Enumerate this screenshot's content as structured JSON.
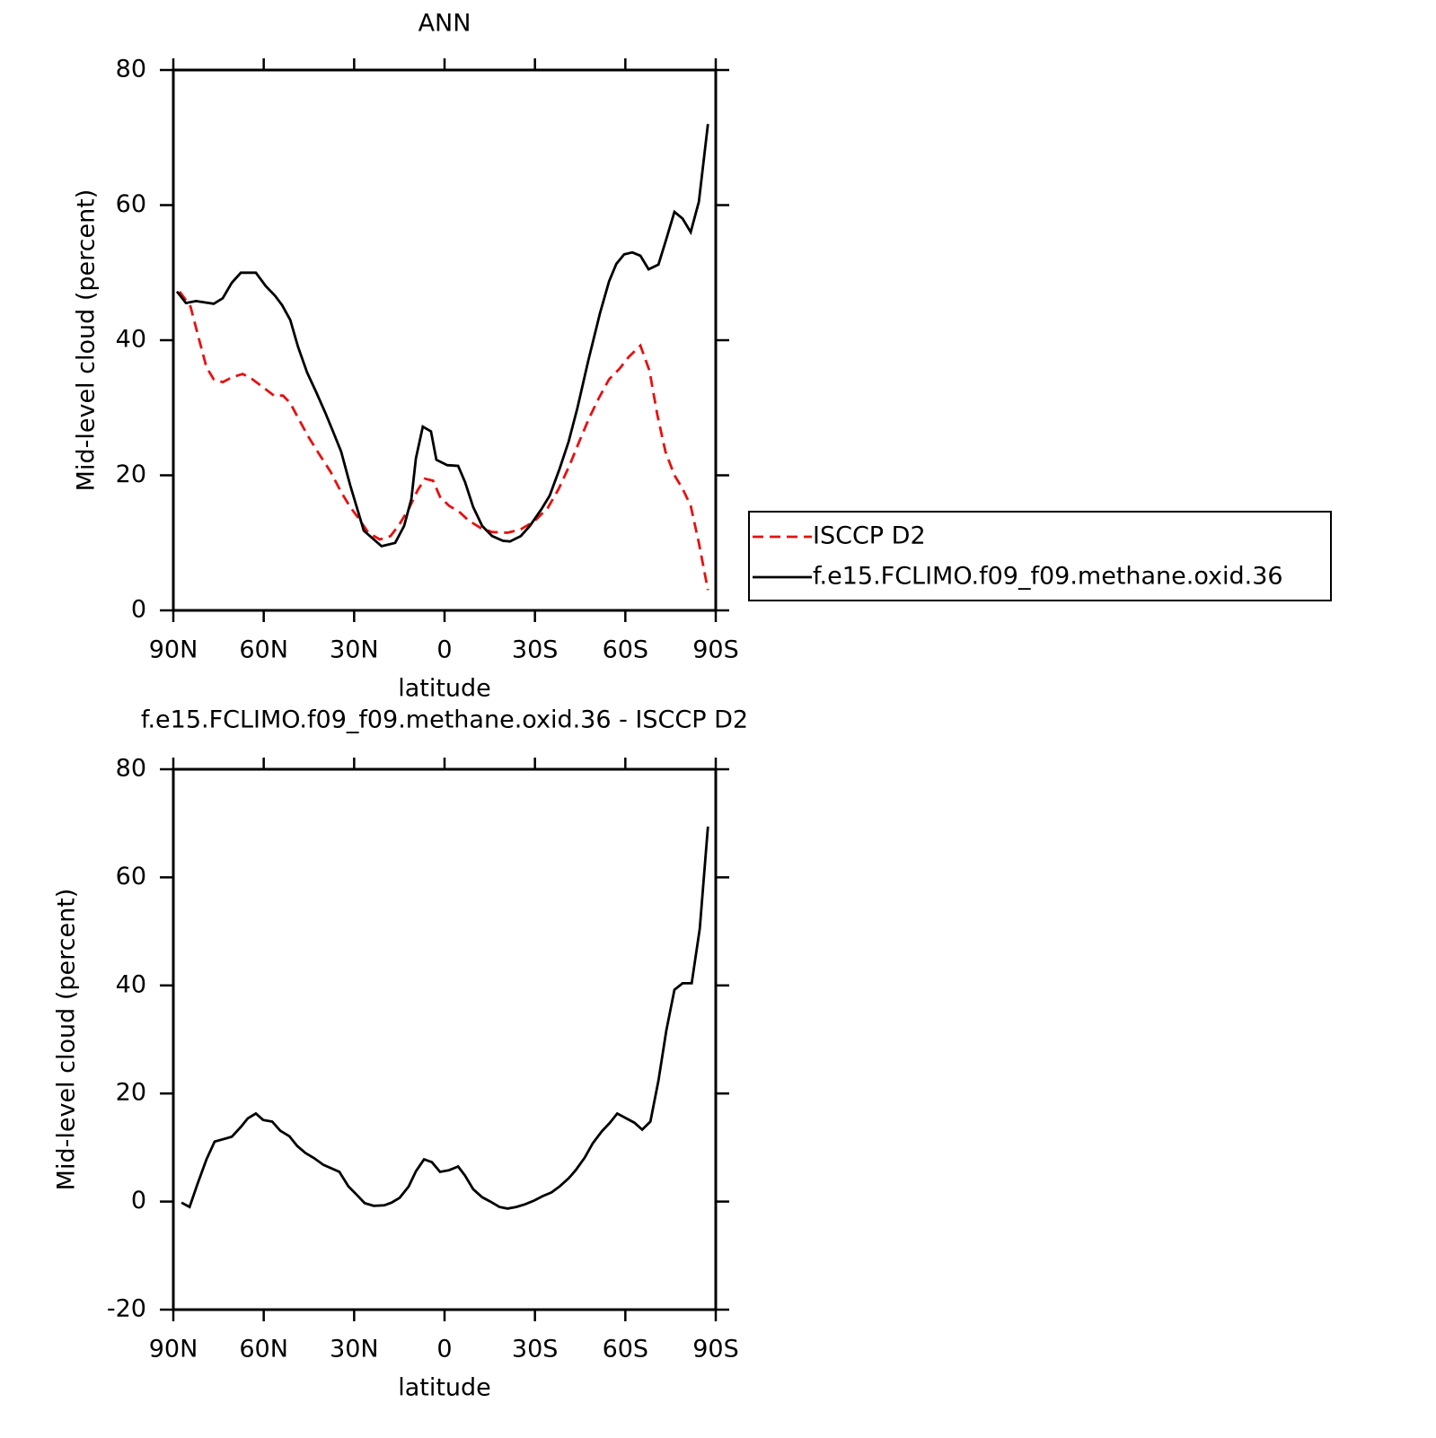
{
  "chart_data": [
    {
      "type": "line",
      "title": "ANN",
      "xlabel": "latitude",
      "ylabel": "Mid-level cloud (percent)",
      "xlim": [
        90,
        -90
      ],
      "xticks": [
        {
          "value": 90,
          "label": "90N"
        },
        {
          "value": 60,
          "label": "60N"
        },
        {
          "value": 30,
          "label": "30N"
        },
        0,
        {
          "value": -30,
          "label": "30S"
        },
        {
          "value": -60,
          "label": "60S"
        },
        {
          "value": -90,
          "label": "90S"
        }
      ],
      "ylim": [
        0,
        80
      ],
      "yticks": [
        0,
        20,
        40,
        60,
        80
      ],
      "legend": "right",
      "series": [
        {
          "name": "ISCCP D2",
          "color": "#e8100f",
          "dash": "dashed",
          "x": [
            87.9,
            84.3,
            81.4,
            79,
            76.6,
            73.6,
            70.6,
            67,
            64,
            61,
            56.6,
            53.6,
            51.2,
            48.6,
            45.3,
            41.7,
            37.8,
            34.3,
            31.3,
            28.3,
            25.3,
            21.5,
            17.9,
            14.9,
            11.9,
            8.9,
            6.5,
            3.8,
            1.5,
            -1.5,
            -5.1,
            -8,
            -12,
            -15.8,
            -20.9,
            -25.3,
            -29.8,
            -34.3,
            -37.9,
            -41.5,
            -44.7,
            -48,
            -51.3,
            -54.6,
            -58.1,
            -61.1,
            -65,
            -68,
            -70.6,
            -73.3,
            -76.3,
            -79,
            -81.7,
            -84.4,
            -87.4
          ],
          "values": [
            47.2,
            45,
            40,
            36,
            34.2,
            33.8,
            34.5,
            35,
            34.3,
            33.3,
            31.8,
            31.8,
            30.7,
            28.5,
            25.8,
            23.2,
            20.5,
            17.5,
            15.3,
            13.5,
            11.5,
            10.5,
            11,
            12.8,
            15,
            17.8,
            19.5,
            19.2,
            16.8,
            15.5,
            14.5,
            13.3,
            12.2,
            11.6,
            11.5,
            12,
            13.2,
            15.2,
            18,
            21.5,
            25,
            28.5,
            31.5,
            34.2,
            35.8,
            37.5,
            39.2,
            35.5,
            29,
            23.5,
            20,
            18,
            15.5,
            10,
            3
          ]
        },
        {
          "name": "f.e15.FCLIMO.f09_f09.methane.oxid.36",
          "color": "#000000",
          "dash": "solid",
          "x": [
            88.8,
            85.8,
            82.5,
            76.6,
            73.6,
            70.6,
            67.6,
            62.6,
            59.3,
            56.3,
            53.9,
            51.2,
            48.6,
            45.6,
            42.6,
            39.6,
            37,
            34.3,
            31.3,
            26.8,
            20.9,
            16.4,
            13.4,
            11,
            9.5,
            7.2,
            4.5,
            2.7,
            -0.9,
            -4.5,
            -6.8,
            -9.5,
            -12.5,
            -15.8,
            -19.4,
            -21.7,
            -25.3,
            -28.3,
            -32.2,
            -34.9,
            -38.2,
            -41.2,
            -44.1,
            -47.7,
            -51.6,
            -54.6,
            -57,
            -59.6,
            -62.3,
            -65,
            -67.7,
            -71,
            -73.6,
            -76.3,
            -79,
            -81.7,
            -84.4,
            -87.4
          ],
          "values": [
            47.2,
            45.5,
            45.8,
            45.4,
            46.2,
            48.5,
            50,
            50,
            48,
            46.6,
            45.2,
            43,
            39,
            35.2,
            32.3,
            29.3,
            26.5,
            23.5,
            18.5,
            11.8,
            9.5,
            10,
            12.5,
            16.5,
            22.5,
            27.2,
            26.5,
            22.3,
            21.5,
            21.4,
            19,
            15.3,
            12.5,
            11,
            10.3,
            10.2,
            11,
            12.5,
            15,
            17,
            21,
            25,
            30,
            37,
            44,
            48.7,
            51.3,
            52.7,
            53,
            52.5,
            50.5,
            51.2,
            55,
            59,
            58,
            56,
            60.5,
            72
          ]
        }
      ]
    },
    {
      "type": "line",
      "title": "f.e15.FCLIMO.f09_f09.methane.oxid.36 - ISCCP D2",
      "xlabel": "latitude",
      "ylabel": "Mid-level cloud (percent)",
      "xlim": [
        90,
        -90
      ],
      "xticks": [
        {
          "value": 90,
          "label": "90N"
        },
        {
          "value": 60,
          "label": "60N"
        },
        {
          "value": 30,
          "label": "30N"
        },
        0,
        {
          "value": -30,
          "label": "30S"
        },
        {
          "value": -60,
          "label": "60S"
        },
        {
          "value": -90,
          "label": "90S"
        }
      ],
      "ylim": [
        -20,
        80
      ],
      "yticks": [
        -20,
        0,
        20,
        40,
        60,
        80
      ],
      "series": [
        {
          "color": "#000000",
          "dash": "solid",
          "x": [
            87.3,
            84.6,
            82,
            79,
            76.3,
            70.6,
            67.6,
            65.3,
            62.6,
            60.2,
            57.2,
            54.5,
            51.5,
            48.9,
            46.2,
            43.2,
            40.2,
            34.9,
            31.9,
            29.2,
            26.5,
            23.5,
            20,
            17.6,
            14.9,
            11.9,
            9.5,
            6.8,
            4.2,
            1.5,
            -1.5,
            -4.5,
            -6.8,
            -9.5,
            -12.5,
            -15.2,
            -18.2,
            -20.9,
            -23.8,
            -26.8,
            -29.8,
            -32.5,
            -35.5,
            -38.2,
            -41.2,
            -43.5,
            -46.5,
            -49.2,
            -52.2,
            -54.9,
            -57.3,
            -60.3,
            -63,
            -65.6,
            -68.3,
            -71,
            -73.6,
            -76.3,
            -79,
            -82,
            -84.7,
            -87.4
          ],
          "values": [
            -0.2,
            -1,
            3.2,
            7.8,
            11.1,
            12,
            13.8,
            15.4,
            16.3,
            15.1,
            14.8,
            13.1,
            12.1,
            10.3,
            9,
            8,
            6.8,
            5.5,
            2.8,
            1.3,
            -0.3,
            -0.8,
            -0.7,
            -0.2,
            0.7,
            2.8,
            5.6,
            7.8,
            7.3,
            5.5,
            5.8,
            6.5,
            4.8,
            2.3,
            0.8,
            0,
            -1,
            -1.3,
            -1,
            -0.5,
            0.2,
            1,
            1.7,
            2.8,
            4.3,
            5.8,
            8.1,
            10.8,
            13,
            14.6,
            16.3,
            15.4,
            14.6,
            13.3,
            14.8,
            22.4,
            31.7,
            39.2,
            40.4,
            40.4,
            50.5,
            69.4
          ]
        }
      ]
    }
  ]
}
